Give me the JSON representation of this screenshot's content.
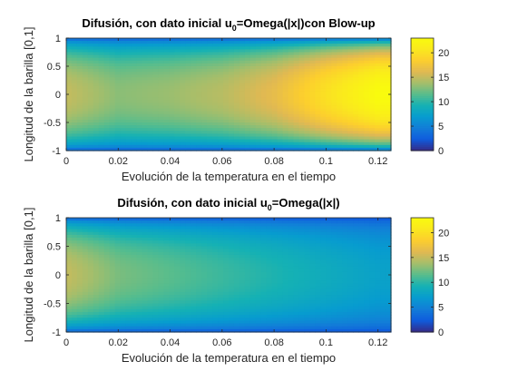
{
  "chart_data": [
    {
      "type": "heatmap",
      "title_main": "Difusión, con dato inicial u",
      "title_sub": "0",
      "title_rest": "=Omega(|x|)con Blow-up",
      "xlabel": "Evolución de la temperatura en el tiempo",
      "ylabel": "Longitud de la barilla [0,1]",
      "xlim": [
        0,
        0.125
      ],
      "ylim": [
        -1,
        1
      ],
      "x_ticks": [
        "0",
        "0.02",
        "0.04",
        "0.06",
        "0.08",
        "0.1",
        "0.12"
      ],
      "x_tick_values": [
        0,
        0.02,
        0.04,
        0.06,
        0.08,
        0.1,
        0.12
      ],
      "y_ticks": [
        "1",
        "0.5",
        "0",
        "-0.5",
        "-1"
      ],
      "y_tick_values": [
        1,
        0.5,
        0,
        -0.5,
        -1
      ],
      "colorbar_ticks": [
        "20",
        "15",
        "10",
        "5",
        "0"
      ],
      "colorbar_tick_values": [
        20,
        15,
        10,
        5,
        0
      ],
      "clim": [
        0,
        23
      ],
      "colormap": "parula",
      "field": {
        "t": [
          0,
          0.02,
          0.04,
          0.06,
          0.08,
          0.1,
          0.12
        ],
        "center_value": [
          15,
          13,
          13.5,
          14.5,
          16.5,
          20,
          23
        ],
        "edge_value": 1
      }
    },
    {
      "type": "heatmap",
      "title_main": "Difusión, con dato inicial u",
      "title_sub": "0",
      "title_rest": "=Omega(|x|)",
      "xlabel": "Evolución de la temperatura en el tiempo",
      "ylabel": "Longitud de la barilla [0,1]",
      "xlim": [
        0,
        0.125
      ],
      "ylim": [
        -1,
        1
      ],
      "x_ticks": [
        "0",
        "0.02",
        "0.04",
        "0.06",
        "0.08",
        "0.1",
        "0.12"
      ],
      "x_tick_values": [
        0,
        0.02,
        0.04,
        0.06,
        0.08,
        0.1,
        0.12
      ],
      "y_ticks": [
        "1",
        "0.5",
        "0",
        "-0.5",
        "-1"
      ],
      "y_tick_values": [
        1,
        0.5,
        0,
        -0.5,
        -1
      ],
      "colorbar_ticks": [
        "20",
        "15",
        "10",
        "5",
        "0"
      ],
      "colorbar_tick_values": [
        20,
        15,
        10,
        5,
        0
      ],
      "clim": [
        0,
        23
      ],
      "colormap": "parula",
      "field": {
        "t": [
          0,
          0.02,
          0.04,
          0.06,
          0.08,
          0.1,
          0.12
        ],
        "center_value": [
          15,
          12.5,
          11.5,
          10.5,
          9.5,
          8.5,
          7.5
        ],
        "edge_value": 1
      }
    }
  ]
}
